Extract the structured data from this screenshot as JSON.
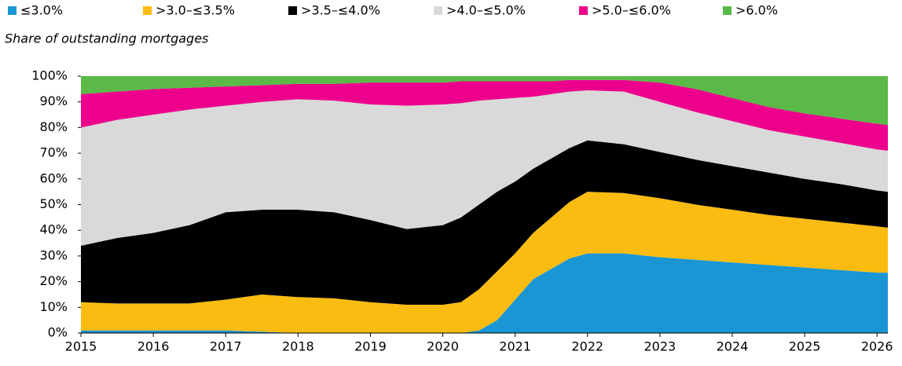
{
  "chart_data": {
    "type": "stacked_area",
    "subtitle": "Share of outstanding mortgages",
    "x": [
      2015,
      2015.5,
      2016,
      2016.5,
      2017,
      2017.5,
      2018,
      2018.5,
      2019,
      2019.5,
      2020,
      2020.25,
      2020.5,
      2020.75,
      2021,
      2021.25,
      2021.5,
      2021.75,
      2022,
      2022.5,
      2023,
      2023.5,
      2024,
      2024.5,
      2025,
      2025.5,
      2026,
      2026.15
    ],
    "series": [
      {
        "name": "≤3.0%",
        "color": "#1a96d4",
        "values": [
          1,
          1,
          1,
          1,
          1,
          0.5,
          0,
          0,
          0,
          0,
          0,
          0,
          1,
          5,
          13,
          21,
          25,
          29,
          31,
          31,
          29.5,
          28.5,
          27.5,
          26.5,
          25.5,
          24.5,
          23.5,
          23.5
        ]
      },
      {
        "name": ">3.0–≤3.5%",
        "color": "#fbbc12",
        "values": [
          11,
          10.5,
          10.5,
          10.5,
          12,
          14.5,
          14,
          13.5,
          12,
          11,
          11,
          12,
          16,
          19,
          18,
          18,
          20,
          22,
          24,
          23.5,
          23,
          21.5,
          20.5,
          19.5,
          19,
          18.5,
          18,
          17.5
        ]
      },
      {
        "name": ">3.5–≤4.0%",
        "color": "#000000",
        "values": [
          22,
          25.5,
          27.5,
          30.5,
          34,
          33,
          34,
          33.5,
          32,
          29.5,
          31,
          33,
          33,
          31,
          28,
          25,
          23,
          21,
          20,
          19,
          18,
          17.5,
          17,
          16.5,
          15.5,
          15,
          14,
          14
        ]
      },
      {
        "name": ">4.0–≤5.0%",
        "color": "#d9d9d9",
        "values": [
          46,
          46,
          46,
          45,
          41.5,
          42,
          43,
          43.5,
          45,
          48,
          47,
          44.5,
          40.5,
          36,
          32.5,
          28,
          25,
          22,
          19.5,
          20.5,
          19.5,
          18.5,
          17.5,
          16.5,
          16.5,
          16,
          16,
          16
        ]
      },
      {
        "name": ">5.0–≤6.0%",
        "color": "#ec008c",
        "values": [
          13,
          11,
          10,
          8.5,
          7.5,
          6.5,
          6,
          6.5,
          8.5,
          9,
          8.5,
          8.5,
          7.5,
          7,
          6.5,
          6,
          5,
          4.5,
          4,
          4.5,
          7.5,
          9,
          9,
          9,
          9,
          9.5,
          10,
          10
        ]
      },
      {
        "name": ">6.0%",
        "color": "#5ab947",
        "values": [
          7,
          6,
          5,
          4.5,
          4,
          3.5,
          3,
          3,
          2.5,
          2.5,
          2.5,
          2,
          2,
          2,
          2,
          2,
          2,
          1.5,
          1.5,
          1.5,
          2.5,
          5,
          8.5,
          12,
          14.5,
          16.5,
          18.5,
          19
        ]
      }
    ],
    "xlim": [
      2015,
      2026.15
    ],
    "xticks": [
      2015,
      2016,
      2017,
      2018,
      2019,
      2020,
      2021,
      2022,
      2023,
      2024,
      2025,
      2026
    ],
    "ylim": [
      0,
      100
    ],
    "yticks": [
      {
        "value": 0,
        "label": "0%"
      },
      {
        "value": 10,
        "label": "10%"
      },
      {
        "value": 20,
        "label": "20%"
      },
      {
        "value": 30,
        "label": "30%"
      },
      {
        "value": 40,
        "label": "40%"
      },
      {
        "value": 50,
        "label": "50%"
      },
      {
        "value": 60,
        "label": "60%"
      },
      {
        "value": 70,
        "label": "70%"
      },
      {
        "value": 80,
        "label": "80%"
      },
      {
        "value": 90,
        "label": "90%"
      },
      {
        "value": 100,
        "label": "100%"
      }
    ],
    "legend": "top"
  }
}
